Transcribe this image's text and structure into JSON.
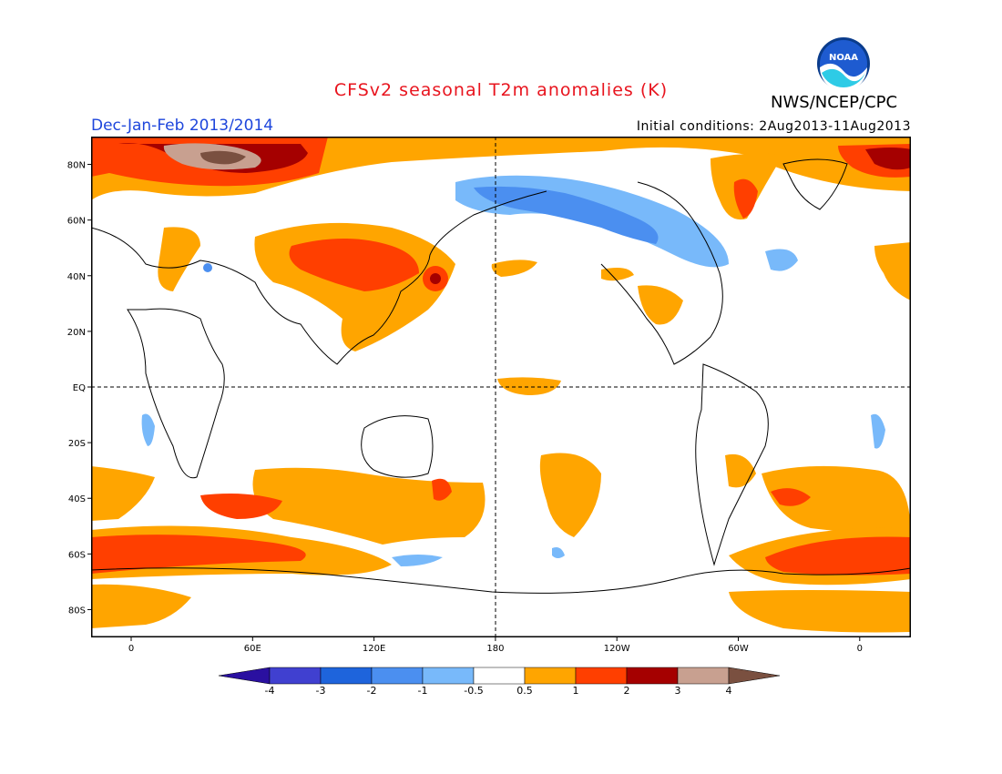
{
  "title": "CFSv2 seasonal T2m anomalies (K)",
  "period": "Dec-Jan-Feb 2013/2014",
  "initial_conditions": "Initial conditions: 2Aug2013-11Aug2013",
  "agency": "NWS/NCEP/CPC",
  "logo_text": "NOAA",
  "colors": {
    "title": "#e8141e",
    "period": "#1e46dc",
    "warm_05_1": "#ffa500",
    "warm_1_2": "#ff3f00",
    "warm_2_3": "#a50000",
    "warm_3_4": "#c8a090",
    "warm_gt4": "#7a5040",
    "cool_05_1": "#78b9fa",
    "cool_1_2": "#4b8ff0",
    "cool_2_3": "#1e64dc",
    "cool_3_4": "#4040d0",
    "cool_lt4": "#2a10a0"
  },
  "axes": {
    "lat_labels": [
      "80N",
      "60N",
      "40N",
      "20N",
      "EQ",
      "20S",
      "40S",
      "60S",
      "80S"
    ],
    "lon_labels": [
      "0",
      "60E",
      "120E",
      "180",
      "120W",
      "60W",
      "0"
    ]
  },
  "colorbar": {
    "labels": [
      "-4",
      "-3",
      "-2",
      "-1",
      "-0.5",
      "0.5",
      "1",
      "2",
      "3",
      "4"
    ]
  }
}
